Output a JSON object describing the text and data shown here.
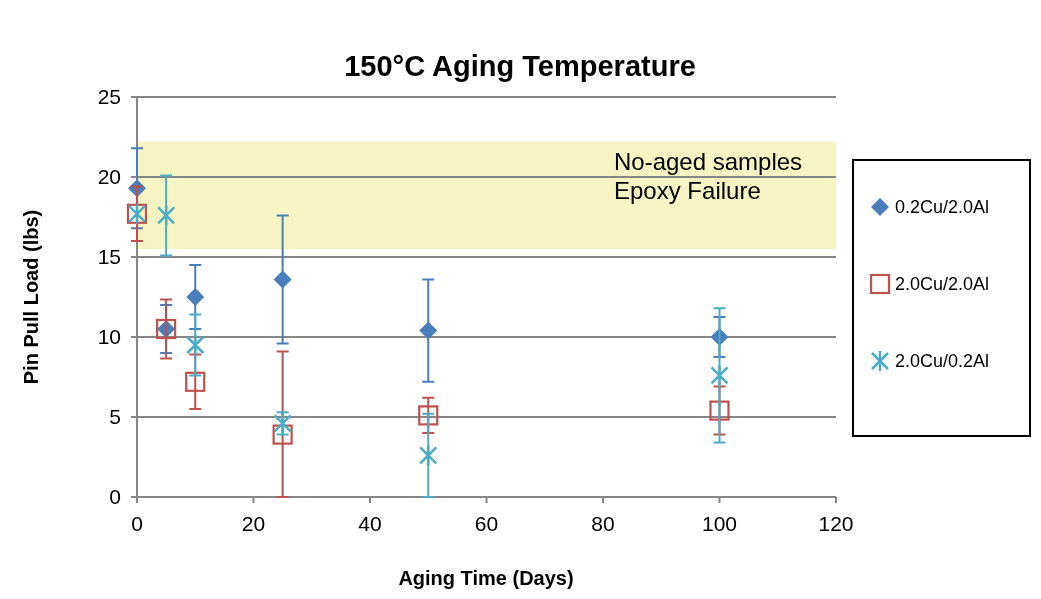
{
  "chart_data": {
    "type": "scatter",
    "title": "150°C Aging Temperature",
    "xlabel": "Aging Time (Days)",
    "ylabel": "Pin Pull Load (lbs)",
    "xlim": [
      0,
      120
    ],
    "xticks": [
      0,
      20,
      40,
      60,
      80,
      100,
      120
    ],
    "ylim": [
      0,
      25
    ],
    "yticks": [
      0,
      5,
      10,
      15,
      20,
      25
    ],
    "grid": "y",
    "legend": "right",
    "bands": [
      {
        "axis": "y",
        "from": 15.5,
        "to": 22.2,
        "label": "No-aged samples\nEpoxy Failure",
        "color": "#f6f4c3"
      }
    ],
    "series": [
      {
        "name": "0.2Cu/2.0Al",
        "color": "#4a7ebb",
        "marker": "diamond",
        "x": [
          0,
          5,
          10,
          25,
          50,
          100
        ],
        "values": [
          19.3,
          10.5,
          12.5,
          13.6,
          10.4,
          10.0
        ],
        "errors": [
          2.5,
          1.5,
          2,
          4,
          3.2,
          1.25
        ]
      },
      {
        "name": "2.0Cu/2.0Al",
        "color": "#c0504d",
        "marker": "square",
        "x": [
          0,
          5,
          10,
          25,
          50,
          100
        ],
        "values": [
          17.7,
          10.5,
          7.2,
          3.9,
          5.1,
          5.4
        ],
        "errors": [
          1.7,
          1.85,
          1.7,
          [
            0,
            9.1
          ],
          1.1,
          1.5
        ]
      },
      {
        "name": "2.0Cu/0.2Al",
        "color": "#4bacc6",
        "marker": "cross",
        "x": [
          0,
          5,
          10,
          25,
          50,
          100
        ],
        "values": [
          17.7,
          17.6,
          9.5,
          4.6,
          2.6,
          7.6
        ],
        "errors": [
          null,
          2.5,
          1.9,
          0.7,
          2.6,
          4.2
        ]
      }
    ]
  }
}
